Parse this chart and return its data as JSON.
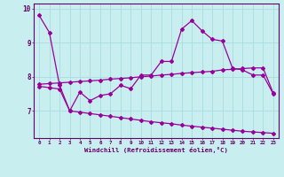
{
  "xlabel": "Windchill (Refroidissement éolien,°C)",
  "x": [
    0,
    1,
    2,
    3,
    4,
    5,
    6,
    7,
    8,
    9,
    10,
    11,
    12,
    13,
    14,
    15,
    16,
    17,
    18,
    19,
    20,
    21,
    22,
    23
  ],
  "line1": [
    9.8,
    9.3,
    7.75,
    7.0,
    7.55,
    7.3,
    7.45,
    7.5,
    7.75,
    7.65,
    8.05,
    8.05,
    8.45,
    8.45,
    9.4,
    9.65,
    9.35,
    9.1,
    9.05,
    8.25,
    8.2,
    8.05,
    8.05,
    7.5
  ],
  "line2": [
    7.78,
    7.8,
    7.82,
    7.84,
    7.86,
    7.88,
    7.9,
    7.93,
    7.95,
    7.97,
    8.0,
    8.02,
    8.05,
    8.07,
    8.1,
    8.12,
    8.14,
    8.16,
    8.2,
    8.22,
    8.24,
    8.26,
    8.26,
    7.52
  ],
  "line3": [
    7.72,
    7.68,
    7.64,
    7.0,
    6.96,
    6.92,
    6.88,
    6.84,
    6.8,
    6.76,
    6.72,
    6.68,
    6.65,
    6.62,
    6.58,
    6.55,
    6.52,
    6.49,
    6.46,
    6.43,
    6.4,
    6.38,
    6.36,
    6.34
  ],
  "bg_color": "#c8eef0",
  "line_color": "#990099",
  "grid_color": "#aadddd",
  "axis_color": "#660066",
  "ylim": [
    6.2,
    10.15
  ],
  "yticks": [
    7,
    8,
    9,
    10
  ],
  "xtick_labels": [
    "0",
    "1",
    "2",
    "3",
    "4",
    "5",
    "6",
    "7",
    "8",
    "9",
    "10",
    "11",
    "12",
    "13",
    "14",
    "15",
    "16",
    "17",
    "18",
    "19",
    "20",
    "21",
    "22",
    "23"
  ]
}
